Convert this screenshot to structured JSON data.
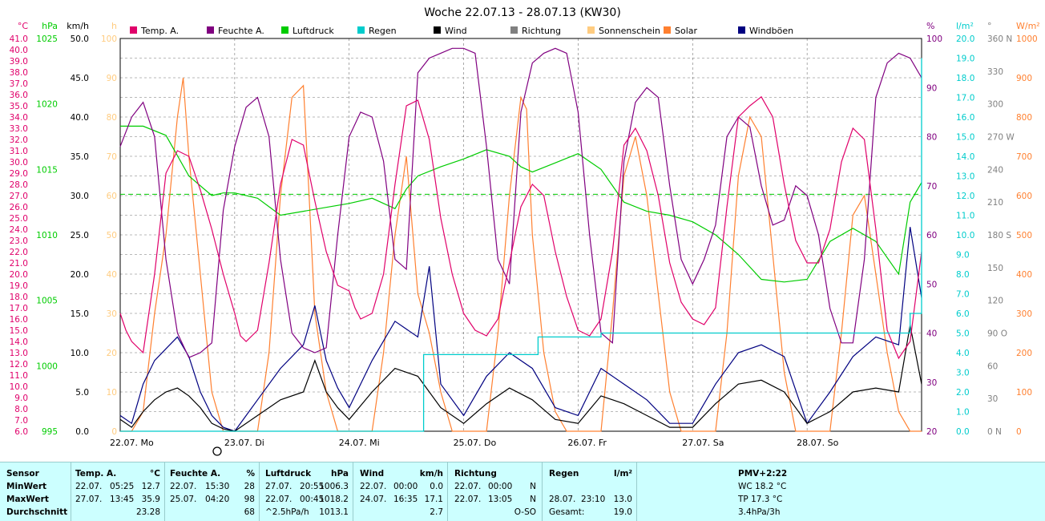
{
  "colors": {
    "temp": "#e0006a",
    "humidity": "#800080",
    "pressure": "#00cc00",
    "rain": "#00cccc",
    "wind": "#000000",
    "direction": "#808080",
    "sunshine": "#ffcc80",
    "solar": "#ff8030",
    "gust": "#000080"
  },
  "chart_data": {
    "type": "line",
    "title": "Woche 22.07.13 - 28.07.13 (KW30)",
    "x_labels": [
      "22.07. Mo",
      "23.07. Di",
      "24.07. Mi",
      "25.07. Do",
      "26.07. Fr",
      "27.07. Sa",
      "28.07. So"
    ],
    "grid": true,
    "legend": [
      {
        "label": "Temp. A.",
        "color_key": "temp"
      },
      {
        "label": "Feuchte A.",
        "color_key": "humidity"
      },
      {
        "label": "Luftdruck",
        "color_key": "pressure"
      },
      {
        "label": "Regen",
        "color_key": "rain"
      },
      {
        "label": "Wind",
        "color_key": "wind"
      },
      {
        "label": "Richtung",
        "color_key": "direction"
      },
      {
        "label": "Sonnenschein",
        "color_key": "sunshine"
      },
      {
        "label": "Solar",
        "color_key": "solar"
      },
      {
        "label": "Windböen",
        "color_key": "gust"
      }
    ],
    "axes": {
      "temp": {
        "unit": "°C",
        "range": [
          6,
          41
        ],
        "step": 1,
        "color_key": "temp"
      },
      "pressure": {
        "unit": "hPa",
        "range": [
          995,
          1025
        ],
        "step": 5,
        "color_key": "pressure"
      },
      "wind": {
        "unit": "km/h",
        "range": [
          0,
          50
        ],
        "step": 5,
        "color_key": "wind"
      },
      "sunshine": {
        "unit": "h",
        "range": [
          0,
          100
        ],
        "step": 10,
        "color_key": "sunshine"
      },
      "humidity": {
        "unit": "%",
        "range": [
          20,
          100
        ],
        "step": 10,
        "color_key": "humidity"
      },
      "rain": {
        "unit": "l/m²",
        "range": [
          0,
          20
        ],
        "step": 1,
        "color_key": "rain"
      },
      "direction": {
        "unit": "°",
        "ticks": [
          "0 N",
          "30",
          "60",
          "90 O",
          "120",
          "150",
          "180 S",
          "210",
          "240",
          "270 W",
          "300",
          "330",
          "360 N"
        ],
        "color_key": "direction"
      },
      "solar": {
        "unit": "W/m²",
        "range": [
          0,
          1000
        ],
        "step": 100,
        "color_key": "solar"
      }
    },
    "series": [
      {
        "name": "Temp. A.",
        "axis": "temp",
        "color_key": "temp",
        "x": [
          0,
          0.05,
          0.1,
          0.2,
          0.3,
          0.4,
          0.5,
          0.6,
          0.7,
          0.8,
          0.9,
          1.0,
          1.05,
          1.1,
          1.2,
          1.3,
          1.4,
          1.5,
          1.6,
          1.65,
          1.7,
          1.8,
          1.9,
          2.0,
          2.05,
          2.1,
          2.2,
          2.3,
          2.4,
          2.5,
          2.6,
          2.7,
          2.8,
          2.9,
          3.0,
          3.1,
          3.2,
          3.3,
          3.4,
          3.5,
          3.6,
          3.7,
          3.8,
          3.9,
          4.0,
          4.1,
          4.2,
          4.3,
          4.4,
          4.5,
          4.6,
          4.7,
          4.8,
          4.9,
          5.0,
          5.1,
          5.2,
          5.3,
          5.4,
          5.5,
          5.6,
          5.7,
          5.8,
          5.9,
          6.0,
          6.1,
          6.2,
          6.3,
          6.4,
          6.5,
          6.6,
          6.7,
          6.8,
          6.9,
          7.0
        ],
        "y": [
          16.5,
          15.0,
          14.0,
          13.0,
          20.0,
          29.0,
          31.0,
          30.5,
          27.5,
          24.0,
          20.0,
          16.5,
          14.5,
          14.0,
          15.0,
          21.0,
          28.0,
          32.0,
          31.5,
          29.0,
          26.5,
          22.0,
          19.0,
          18.5,
          17.0,
          16.0,
          16.5,
          20.0,
          28.0,
          35.0,
          35.5,
          32.0,
          25.0,
          20.0,
          16.5,
          15.0,
          14.5,
          16.0,
          21.0,
          26.0,
          28.0,
          27.0,
          22.0,
          18.0,
          15.0,
          14.5,
          16.0,
          22.0,
          31.5,
          33.0,
          31.0,
          27.0,
          21.0,
          17.5,
          16.0,
          15.5,
          17.0,
          26.0,
          34.0,
          35.0,
          35.8,
          34.0,
          28.0,
          23.0,
          21.0,
          21.0,
          24.0,
          30.0,
          33.0,
          32.0,
          24.0,
          15.0,
          12.5,
          14.0,
          22.0
        ]
      },
      {
        "name": "Feuchte A.",
        "axis": "humidity",
        "color_key": "humidity",
        "x": [
          0,
          0.1,
          0.2,
          0.3,
          0.4,
          0.5,
          0.6,
          0.7,
          0.8,
          0.9,
          1.0,
          1.1,
          1.2,
          1.3,
          1.4,
          1.5,
          1.6,
          1.7,
          1.8,
          1.9,
          2.0,
          2.1,
          2.2,
          2.3,
          2.4,
          2.5,
          2.6,
          2.7,
          2.8,
          2.9,
          3.0,
          3.1,
          3.2,
          3.3,
          3.4,
          3.5,
          3.6,
          3.7,
          3.8,
          3.9,
          4.0,
          4.1,
          4.2,
          4.3,
          4.4,
          4.5,
          4.6,
          4.7,
          4.8,
          4.9,
          5.0,
          5.1,
          5.2,
          5.3,
          5.4,
          5.5,
          5.6,
          5.7,
          5.8,
          5.9,
          6.0,
          6.1,
          6.2,
          6.3,
          6.4,
          6.5,
          6.6,
          6.7,
          6.8,
          6.9,
          7.0
        ],
        "y": [
          78,
          84,
          87,
          80,
          55,
          40,
          35,
          36,
          38,
          65,
          78,
          86,
          88,
          80,
          55,
          40,
          37,
          36,
          37,
          60,
          80,
          85,
          84,
          75,
          55,
          53,
          93,
          96,
          97,
          98,
          98,
          97,
          78,
          55,
          50,
          85,
          95,
          97,
          98,
          97,
          85,
          60,
          40,
          38,
          75,
          87,
          90,
          88,
          70,
          55,
          50,
          55,
          62,
          80,
          84,
          82,
          70,
          62,
          63,
          70,
          68,
          60,
          45,
          38,
          38,
          55,
          88,
          95,
          97,
          96,
          92
        ]
      },
      {
        "name": "Luftdruck",
        "axis": "pressure",
        "color_key": "pressure",
        "x": [
          0,
          0.2,
          0.4,
          0.6,
          0.8,
          0.9,
          1.0,
          1.2,
          1.4,
          1.6,
          1.8,
          2.0,
          2.2,
          2.4,
          2.5,
          2.6,
          2.8,
          3.0,
          3.2,
          3.4,
          3.5,
          3.6,
          3.8,
          4.0,
          4.2,
          4.4,
          4.6,
          4.8,
          5.0,
          5.2,
          5.4,
          5.6,
          5.8,
          6.0,
          6.2,
          6.4,
          6.6,
          6.8,
          6.9,
          7.0
        ],
        "y": [
          1018.3,
          1018.3,
          1017.6,
          1014.5,
          1013.0,
          1013.2,
          1013.2,
          1012.8,
          1011.5,
          1011.8,
          1012.1,
          1012.4,
          1012.8,
          1012.0,
          1013.5,
          1014.5,
          1015.2,
          1015.8,
          1016.5,
          1016.0,
          1015.2,
          1014.8,
          1015.5,
          1016.2,
          1015.0,
          1012.5,
          1011.8,
          1011.5,
          1011.0,
          1010.0,
          1008.5,
          1006.6,
          1006.4,
          1006.6,
          1009.5,
          1010.5,
          1009.5,
          1007.0,
          1012.5,
          1014.0
        ]
      },
      {
        "name": "Wind",
        "axis": "wind",
        "color_key": "wind",
        "x": [
          0,
          0.1,
          0.2,
          0.3,
          0.4,
          0.5,
          0.6,
          0.7,
          0.8,
          0.9,
          1.0,
          1.2,
          1.4,
          1.6,
          1.7,
          1.8,
          1.9,
          2.0,
          2.2,
          2.4,
          2.6,
          2.8,
          3.0,
          3.2,
          3.4,
          3.6,
          3.8,
          4.0,
          4.2,
          4.4,
          4.6,
          4.8,
          5.0,
          5.2,
          5.4,
          5.6,
          5.8,
          6.0,
          6.2,
          6.4,
          6.6,
          6.8,
          6.9,
          7.0
        ],
        "y": [
          1.5,
          0.5,
          2.5,
          4.0,
          5.0,
          5.5,
          4.5,
          3.0,
          1.0,
          0.3,
          0.0,
          2.0,
          4.0,
          5.0,
          9.0,
          5.0,
          3.0,
          1.5,
          5.0,
          8.0,
          7.0,
          3.0,
          1.0,
          3.5,
          5.5,
          4.0,
          1.5,
          1.0,
          4.5,
          3.5,
          2.0,
          0.5,
          0.5,
          3.5,
          6.0,
          6.5,
          5.0,
          1.0,
          2.5,
          5.0,
          5.5,
          5.0,
          13.5,
          6.0
        ]
      },
      {
        "name": "Windböen",
        "axis": "wind",
        "color_key": "gust",
        "x": [
          0,
          0.1,
          0.2,
          0.3,
          0.4,
          0.5,
          0.6,
          0.7,
          0.8,
          0.9,
          1.0,
          1.2,
          1.4,
          1.6,
          1.7,
          1.8,
          1.9,
          2.0,
          2.2,
          2.4,
          2.6,
          2.7,
          2.8,
          3.0,
          3.2,
          3.4,
          3.6,
          3.8,
          4.0,
          4.2,
          4.4,
          4.6,
          4.8,
          5.0,
          5.2,
          5.4,
          5.6,
          5.8,
          6.0,
          6.2,
          6.4,
          6.6,
          6.8,
          6.9,
          7.0
        ],
        "y": [
          2.0,
          1.0,
          6.0,
          9.0,
          10.5,
          12.0,
          9.5,
          5.0,
          2.0,
          0.5,
          0.0,
          4.0,
          8.0,
          11.0,
          16.0,
          9.0,
          5.5,
          3.0,
          9.0,
          14.0,
          12.0,
          21.0,
          6.0,
          2.0,
          7.0,
          10.0,
          8.0,
          3.0,
          2.0,
          8.0,
          6.0,
          4.0,
          1.0,
          1.0,
          6.0,
          10.0,
          11.0,
          9.5,
          1.0,
          5.0,
          9.5,
          12.0,
          11.0,
          26.0,
          17.0
        ]
      },
      {
        "name": "Solar",
        "axis": "solar",
        "color_key": "solar",
        "x": [
          0,
          0.1,
          0.2,
          0.3,
          0.4,
          0.5,
          0.55,
          0.6,
          0.7,
          0.8,
          0.9,
          1.0,
          1.2,
          1.3,
          1.4,
          1.5,
          1.6,
          1.65,
          1.7,
          1.8,
          1.9,
          2.0,
          2.2,
          2.3,
          2.4,
          2.5,
          2.6,
          2.7,
          2.8,
          2.9,
          3.0,
          3.2,
          3.3,
          3.4,
          3.5,
          3.55,
          3.6,
          3.7,
          3.8,
          3.9,
          4.0,
          4.2,
          4.3,
          4.4,
          4.5,
          4.6,
          4.7,
          4.8,
          4.9,
          5.0,
          5.2,
          5.3,
          5.4,
          5.5,
          5.6,
          5.7,
          5.8,
          5.9,
          6.0,
          6.2,
          6.3,
          6.4,
          6.5,
          6.6,
          6.7,
          6.8,
          6.9,
          7.0
        ],
        "y": [
          0,
          0,
          50,
          300,
          500,
          800,
          900,
          700,
          400,
          100,
          0,
          0,
          0,
          200,
          600,
          850,
          880,
          600,
          300,
          100,
          0,
          0,
          0,
          200,
          500,
          700,
          350,
          250,
          100,
          0,
          0,
          0,
          250,
          600,
          850,
          820,
          500,
          200,
          50,
          0,
          0,
          0,
          300,
          650,
          750,
          600,
          350,
          100,
          0,
          0,
          0,
          250,
          650,
          800,
          750,
          450,
          150,
          0,
          0,
          0,
          250,
          550,
          600,
          400,
          200,
          50,
          0,
          0
        ]
      }
    ],
    "rain": {
      "x": [
        0,
        2.6,
        2.65,
        3.6,
        3.65,
        4.0,
        4.2,
        6.8,
        6.9,
        7.0
      ],
      "y": [
        0,
        0,
        3.9,
        3.9,
        4.8,
        4.8,
        5.0,
        5.0,
        6.0,
        19.0
      ]
    }
  },
  "table": {
    "sensor": {
      "header": "Sensor",
      "rows": [
        "MinWert",
        "MaxWert",
        "Durchschnitt"
      ]
    },
    "temp": {
      "header": "Temp. A.",
      "unit": "°C",
      "rows": [
        [
          "22.07.",
          "05:25",
          "12.7"
        ],
        [
          "27.07.",
          "13:45",
          "35.9"
        ],
        [
          "",
          "",
          "23.28"
        ]
      ]
    },
    "feuchte": {
      "header": "Feuchte A.",
      "unit": "%",
      "rows": [
        [
          "22.07.",
          "15:30",
          "28"
        ],
        [
          "25.07.",
          "04:20",
          "98"
        ],
        [
          "",
          "",
          "68"
        ]
      ]
    },
    "luftdruck": {
      "header": "Luftdruck",
      "unit": "hPa",
      "rows": [
        [
          "27.07.",
          "20:55",
          "1006.3"
        ],
        [
          "22.07.",
          "00:45",
          "1018.2"
        ],
        [
          "^2.5hPa/h",
          "",
          "1013.1"
        ]
      ]
    },
    "wind": {
      "header": "Wind",
      "unit": "km/h",
      "rows": [
        [
          "22.07.",
          "00:00",
          "0.0"
        ],
        [
          "24.07.",
          "16:35",
          "17.1"
        ],
        [
          "",
          "",
          "2.7"
        ]
      ]
    },
    "richtung": {
      "header": "Richtung",
      "rows": [
        [
          "22.07.",
          "00:00",
          "N"
        ],
        [
          "22.07.",
          "13:05",
          "N"
        ],
        [
          "",
          "",
          "O-SO"
        ]
      ]
    },
    "regen": {
      "header": "Regen",
      "unit": "l/m²",
      "rows": [
        [
          "28.07.",
          "23:10",
          "13.0"
        ],
        [
          "Gesamt:",
          "",
          "19.0"
        ]
      ]
    },
    "pmv": {
      "header": "PMV+2:22",
      "rows": [
        "WC 18.2 °C",
        "TP 17.3 °C",
        "3.4hPa/3h"
      ]
    }
  }
}
